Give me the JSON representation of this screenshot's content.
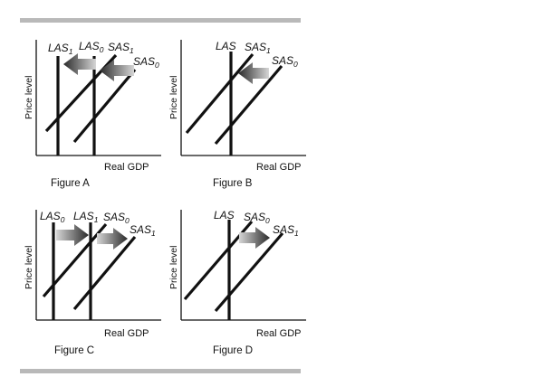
{
  "axis_labels": {
    "y": "Price level",
    "x": "Real GDP"
  },
  "figures": [
    {
      "caption": "Figure A",
      "labels": [
        {
          "base": "LAS",
          "sub": "1"
        },
        {
          "base": "LAS",
          "sub": "0"
        },
        {
          "base": "SAS",
          "sub": "1"
        },
        {
          "base": "SAS",
          "sub": "0"
        }
      ],
      "shifts": [
        {
          "curve": "LAS",
          "direction": "left"
        },
        {
          "curve": "SAS",
          "direction": "left"
        }
      ]
    },
    {
      "caption": "Figure B",
      "labels": [
        {
          "base": "LAS",
          "sub": ""
        },
        {
          "base": "SAS",
          "sub": "1"
        },
        {
          "base": "SAS",
          "sub": "0"
        }
      ],
      "shifts": [
        {
          "curve": "SAS",
          "direction": "left"
        }
      ]
    },
    {
      "caption": "Figure C",
      "labels": [
        {
          "base": "LAS",
          "sub": "0"
        },
        {
          "base": "LAS",
          "sub": "1"
        },
        {
          "base": "SAS",
          "sub": "0"
        },
        {
          "base": "SAS",
          "sub": "1"
        }
      ],
      "shifts": [
        {
          "curve": "LAS",
          "direction": "right"
        },
        {
          "curve": "SAS",
          "direction": "right"
        }
      ]
    },
    {
      "caption": "Figure D",
      "labels": [
        {
          "base": "LAS",
          "sub": ""
        },
        {
          "base": "SAS",
          "sub": "0"
        },
        {
          "base": "SAS",
          "sub": "1"
        }
      ],
      "shifts": [
        {
          "curve": "SAS",
          "direction": "right"
        }
      ]
    }
  ],
  "colors": {
    "line": "#111111",
    "arrow_dark": "#2a2a2a",
    "arrow_light": "#d6d6d6",
    "rule": "#b9b9b9"
  }
}
